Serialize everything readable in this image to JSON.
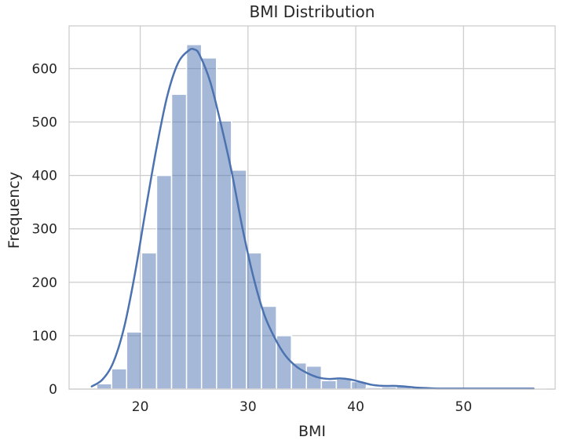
{
  "chart_data": {
    "type": "histogram",
    "title": "BMI Distribution",
    "xlabel": "BMI",
    "ylabel": "Frequency",
    "xlim": [
      13.4,
      58.5
    ],
    "ylim": [
      0,
      680
    ],
    "xticks": [
      20,
      30,
      40,
      50
    ],
    "yticks": [
      0,
      100,
      200,
      300,
      400,
      500,
      600
    ],
    "grid": true,
    "bar_color": "#4c72b0",
    "kde_color": "#4c72b0",
    "bins": [
      {
        "x0": 15.96,
        "x1": 17.35,
        "count": 10
      },
      {
        "x0": 17.35,
        "x1": 18.74,
        "count": 38
      },
      {
        "x0": 18.74,
        "x1": 20.13,
        "count": 107
      },
      {
        "x0": 20.13,
        "x1": 21.52,
        "count": 255
      },
      {
        "x0": 21.52,
        "x1": 22.91,
        "count": 400
      },
      {
        "x0": 22.91,
        "x1": 24.3,
        "count": 552
      },
      {
        "x0": 24.3,
        "x1": 25.69,
        "count": 645
      },
      {
        "x0": 25.69,
        "x1": 27.08,
        "count": 620
      },
      {
        "x0": 27.08,
        "x1": 28.47,
        "count": 502
      },
      {
        "x0": 28.47,
        "x1": 29.86,
        "count": 410
      },
      {
        "x0": 29.86,
        "x1": 31.25,
        "count": 255
      },
      {
        "x0": 31.25,
        "x1": 32.64,
        "count": 155
      },
      {
        "x0": 32.64,
        "x1": 34.03,
        "count": 100
      },
      {
        "x0": 34.03,
        "x1": 35.42,
        "count": 49
      },
      {
        "x0": 35.42,
        "x1": 36.81,
        "count": 43
      },
      {
        "x0": 36.81,
        "x1": 38.2,
        "count": 16
      },
      {
        "x0": 38.2,
        "x1": 39.59,
        "count": 19
      },
      {
        "x0": 39.59,
        "x1": 40.98,
        "count": 14
      },
      {
        "x0": 40.98,
        "x1": 42.37,
        "count": 3
      },
      {
        "x0": 42.37,
        "x1": 43.76,
        "count": 4
      },
      {
        "x0": 43.76,
        "x1": 45.15,
        "count": 5
      },
      {
        "x0": 45.15,
        "x1": 46.54,
        "count": 3
      },
      {
        "x0": 46.54,
        "x1": 47.93,
        "count": 1
      },
      {
        "x0": 47.93,
        "x1": 49.32,
        "count": 1
      },
      {
        "x0": 49.32,
        "x1": 50.71,
        "count": 1
      },
      {
        "x0": 50.71,
        "x1": 52.1,
        "count": 2
      },
      {
        "x0": 52.1,
        "x1": 53.49,
        "count": 1
      },
      {
        "x0": 53.49,
        "x1": 54.88,
        "count": 1
      },
      {
        "x0": 54.88,
        "x1": 56.27,
        "count": 1
      },
      {
        "x0": 56.27,
        "x1": 57.66,
        "count": 1
      }
    ],
    "kde": {
      "x": [
        15.5,
        16.5,
        17.5,
        18.5,
        19.5,
        20.5,
        21.5,
        22.5,
        23.5,
        24.5,
        25.0,
        25.5,
        26.5,
        27.5,
        28.5,
        29.5,
        30.5,
        31.5,
        32.5,
        33.5,
        34.5,
        35.5,
        36.5,
        37.5,
        38.5,
        39.5,
        40.5,
        41.5,
        42.5,
        43.5,
        44.5,
        45.5,
        46.5,
        47.5,
        50.0,
        53.0,
        56.5
      ],
      "y": [
        5,
        18,
        50,
        115,
        215,
        335,
        450,
        548,
        610,
        634,
        636,
        626,
        575,
        495,
        405,
        300,
        210,
        140,
        95,
        62,
        42,
        30,
        22,
        19,
        20,
        18,
        13,
        8,
        6,
        6,
        5,
        3,
        2,
        1,
        1,
        1,
        1
      ]
    }
  }
}
